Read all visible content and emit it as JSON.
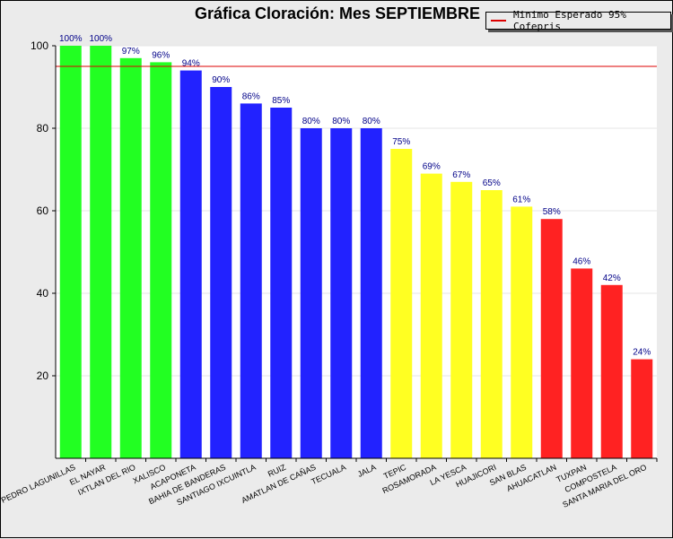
{
  "chart_data": {
    "type": "bar",
    "title": "Gráfica Cloración: Mes SEPTIEMBRE",
    "xlabel": "",
    "ylabel": "",
    "ylim": [
      0,
      100
    ],
    "yticks": [
      20,
      40,
      60,
      80,
      100
    ],
    "grid": true,
    "categories": [
      "SAN PEDRO LAGUNILLAS",
      "EL NAYAR",
      "IXTLAN DEL RIO",
      "XALISCO",
      "ACAPONETA",
      "BAHIA DE BANDERAS",
      "SANTIAGO IXCUINTLA",
      "RUIZ",
      "AMATLAN DE CAÑAS",
      "TECUALA",
      "JALA",
      "TEPIC",
      "ROSAMORADA",
      "LA YESCA",
      "HUAJICORI",
      "SAN BLAS",
      "AHUACATLAN",
      "TUXPAN",
      "COMPOSTELA",
      "SANTA MARIA DEL ORO"
    ],
    "values": [
      100,
      100,
      97,
      96,
      94,
      90,
      86,
      85,
      80,
      80,
      80,
      75,
      69,
      67,
      65,
      61,
      58,
      46,
      42,
      24
    ],
    "value_labels": [
      "100%",
      "100%",
      "97%",
      "96%",
      "94%",
      "90%",
      "86%",
      "85%",
      "80%",
      "80%",
      "80%",
      "75%",
      "69%",
      "67%",
      "65%",
      "61%",
      "58%",
      "46%",
      "42%",
      "24%"
    ],
    "colors": [
      "#22ff22",
      "#22ff22",
      "#22ff22",
      "#22ff22",
      "#2222ff",
      "#2222ff",
      "#2222ff",
      "#2222ff",
      "#2222ff",
      "#2222ff",
      "#2222ff",
      "#ffff22",
      "#ffff22",
      "#ffff22",
      "#ffff22",
      "#ffff22",
      "#ff2222",
      "#ff2222",
      "#ff2222",
      "#ff2222"
    ],
    "reference_line": {
      "value": 95,
      "label": "Minimo Esperado 95% Cofepris",
      "color": "#dd0000"
    },
    "legend_position": "top-right"
  }
}
